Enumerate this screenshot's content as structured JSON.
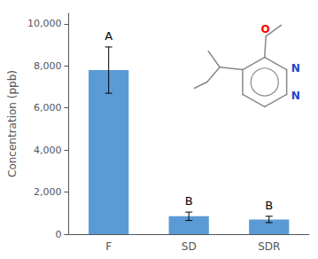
{
  "chart_data": {
    "type": "bar",
    "categories": [
      "F",
      "SD",
      "SDR"
    ],
    "values": [
      7800,
      850,
      700
    ],
    "errors": [
      1100,
      200,
      150
    ],
    "color": "#5b9bd5",
    "ylabel": "Concentration (ppb)",
    "ylim": [
      0,
      10500
    ],
    "yticks": [
      0,
      2000,
      4000,
      6000,
      8000,
      10000
    ],
    "grid": false,
    "annotations": [
      {
        "text": "A",
        "category": "F"
      },
      {
        "text": "B",
        "category": "SD"
      },
      {
        "text": "B",
        "category": "SDR"
      },
      {
        "text": "N",
        "color": "#2244cc"
      },
      {
        "text": "N",
        "color": "#2244cc"
      },
      {
        "text": "O",
        "color": "#ff0000"
      }
    ]
  }
}
